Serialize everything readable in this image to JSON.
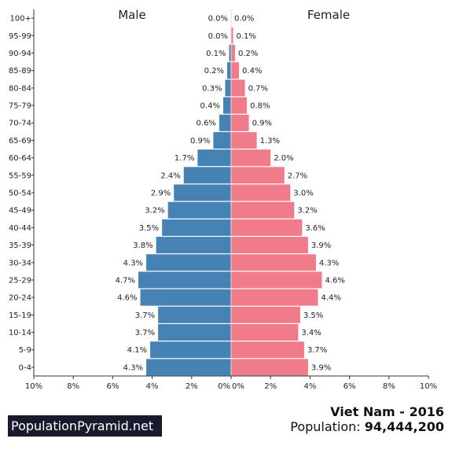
{
  "header": {
    "male_label": "Male",
    "female_label": "Female"
  },
  "footer": {
    "brand": "PopulationPyramid.net",
    "country_year": "Viet Nam - 2016",
    "population_prefix": "Population: ",
    "population_value": "94,444,200"
  },
  "colors": {
    "male": "#4682b4",
    "female": "#f07b8a"
  },
  "chart_data": {
    "type": "bar",
    "orientation": "horizontal-pyramid",
    "categories": [
      "100+",
      "95-99",
      "90-94",
      "85-89",
      "80-84",
      "75-79",
      "70-74",
      "65-69",
      "60-64",
      "55-59",
      "50-54",
      "45-49",
      "40-44",
      "35-39",
      "30-34",
      "25-29",
      "20-24",
      "15-19",
      "10-14",
      "5-9",
      "0-4"
    ],
    "series": [
      {
        "name": "Male",
        "values": [
          0.0,
          0.0,
          0.1,
          0.2,
          0.3,
          0.4,
          0.6,
          0.9,
          1.7,
          2.4,
          2.9,
          3.2,
          3.5,
          3.8,
          4.3,
          4.7,
          4.6,
          3.7,
          3.7,
          4.1,
          4.3
        ],
        "labels": [
          "0.0%",
          "0.0%",
          "0.1%",
          "0.2%",
          "0.3%",
          "0.4%",
          "0.6%",
          "0.9%",
          "1.7%",
          "2.4%",
          "2.9%",
          "3.2%",
          "3.5%",
          "3.8%",
          "4.3%",
          "4.7%",
          "4.6%",
          "3.7%",
          "3.7%",
          "4.1%",
          "4.3%"
        ]
      },
      {
        "name": "Female",
        "values": [
          0.0,
          0.1,
          0.2,
          0.4,
          0.7,
          0.8,
          0.9,
          1.3,
          2.0,
          2.7,
          3.0,
          3.2,
          3.6,
          3.9,
          4.3,
          4.6,
          4.4,
          3.5,
          3.4,
          3.7,
          3.9
        ],
        "labels": [
          "0.0%",
          "0.1%",
          "0.2%",
          "0.4%",
          "0.7%",
          "0.8%",
          "0.9%",
          "1.3%",
          "2.0%",
          "2.7%",
          "3.0%",
          "3.2%",
          "3.6%",
          "3.9%",
          "4.3%",
          "4.6%",
          "4.4%",
          "3.5%",
          "3.4%",
          "3.7%",
          "3.9%"
        ]
      }
    ],
    "xlim": [
      0,
      10
    ],
    "x_ticks_left": [
      "10%",
      "8%",
      "6%",
      "4%",
      "2%",
      "0%"
    ],
    "x_ticks_right": [
      "0%",
      "2%",
      "4%",
      "6%",
      "8%",
      "10%"
    ],
    "grid": false
  }
}
